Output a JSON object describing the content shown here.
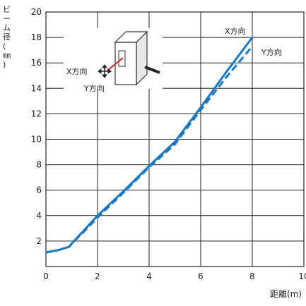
{
  "chart_data": {
    "type": "line",
    "xlabel": "距離(m)",
    "ylabel": "ビーム径(㎜)",
    "xlim": [
      0,
      10
    ],
    "ylim": [
      0,
      20
    ],
    "x_ticks": [
      "0",
      "2",
      "4",
      "6",
      "8",
      "10"
    ],
    "y_ticks": [
      "2",
      "4",
      "6",
      "8",
      "10",
      "12",
      "14",
      "16",
      "18",
      "20"
    ],
    "grid": true,
    "series": [
      {
        "name": "X方向",
        "style": "solid",
        "color": "#1a78c2",
        "x": [
          0,
          0.5,
          0.9,
          1,
          1.5,
          2,
          3,
          4,
          5,
          6,
          7,
          8
        ],
        "y": [
          1.1,
          1.3,
          1.55,
          1.8,
          2.9,
          4.0,
          5.9,
          7.9,
          9.8,
          12.5,
          15.3,
          18.0
        ]
      },
      {
        "name": "Y方向",
        "style": "dashed",
        "color": "#1a78c2",
        "x": [
          0,
          0.5,
          0.9,
          1,
          1.5,
          2,
          3,
          4,
          5,
          6,
          7,
          8
        ],
        "y": [
          1.1,
          1.3,
          1.55,
          1.8,
          2.8,
          3.85,
          5.8,
          7.8,
          9.6,
          12.3,
          14.9,
          17.3
        ]
      }
    ],
    "inset_labels": {
      "x_direction": "X方向",
      "y_direction": "Y方向"
    }
  }
}
